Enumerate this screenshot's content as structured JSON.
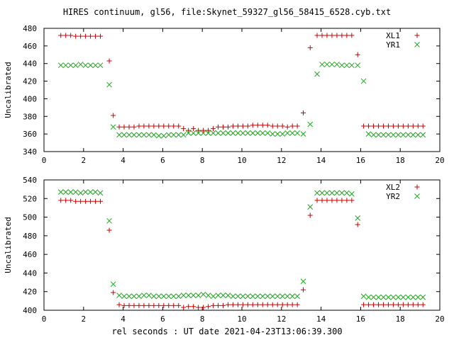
{
  "title": "HIRES continuum, gl56, file:Skynet_59327_gl56_58415_6528.cyb.txt",
  "xlabel": "rel seconds : UT date 2021-04-23T13:06:39.300",
  "colors": {
    "red": "#cc0000",
    "green": "#1fa41f"
  },
  "chart_data": [
    {
      "type": "scatter",
      "ylabel": "Uncalibrated",
      "xlim": [
        0,
        20
      ],
      "ylim": [
        340,
        480
      ],
      "xticks": [
        0,
        2,
        4,
        6,
        8,
        10,
        12,
        14,
        16,
        18,
        20
      ],
      "yticks": [
        340,
        360,
        380,
        400,
        420,
        440,
        460,
        480
      ],
      "legend_position": "top-right",
      "grid": false,
      "series": [
        {
          "name": "XL1",
          "marker": "plus",
          "color": "#cc0000",
          "x": [
            0.85,
            1.1,
            1.35,
            1.6,
            1.85,
            2.1,
            2.35,
            2.6,
            2.85,
            3.3,
            3.5,
            3.8,
            4.05,
            4.3,
            4.55,
            4.8,
            5.05,
            5.3,
            5.55,
            5.8,
            6.05,
            6.3,
            6.55,
            6.8,
            7.05,
            7.3,
            7.55,
            7.8,
            8.05,
            8.3,
            8.55,
            8.8,
            9.05,
            9.3,
            9.55,
            9.8,
            10.05,
            10.3,
            10.55,
            10.8,
            11.05,
            11.3,
            11.55,
            11.8,
            12.05,
            12.3,
            12.55,
            12.8,
            13.1,
            13.45,
            13.8,
            14.05,
            14.3,
            14.55,
            14.8,
            15.05,
            15.3,
            15.55,
            15.85,
            16.15,
            16.4,
            16.65,
            16.9,
            17.15,
            17.4,
            17.65,
            17.9,
            18.15,
            18.4,
            18.65,
            18.9,
            19.15
          ],
          "y": [
            472,
            472,
            472,
            471,
            471,
            471,
            471,
            471,
            471,
            443,
            381,
            368,
            368,
            368,
            368,
            369,
            369,
            369,
            369,
            369,
            369,
            369,
            369,
            369,
            366,
            364,
            366,
            364,
            364,
            364,
            366,
            368,
            368,
            368,
            369,
            369,
            369,
            369,
            370,
            370,
            370,
            370,
            369,
            369,
            369,
            368,
            369,
            369,
            384,
            458,
            472,
            472,
            472,
            472,
            472,
            472,
            472,
            472,
            450,
            369,
            369,
            369,
            369,
            369,
            369,
            369,
            369,
            369,
            369,
            369,
            369,
            369
          ]
        },
        {
          "name": "YR1",
          "marker": "cross",
          "color": "#1fa41f",
          "x": [
            0.85,
            1.1,
            1.35,
            1.6,
            1.85,
            2.1,
            2.35,
            2.6,
            2.85,
            3.3,
            3.5,
            3.8,
            4.05,
            4.3,
            4.55,
            4.8,
            5.05,
            5.3,
            5.55,
            5.8,
            6.05,
            6.3,
            6.55,
            6.8,
            7.05,
            7.3,
            7.55,
            7.8,
            8.05,
            8.3,
            8.55,
            8.8,
            9.05,
            9.3,
            9.55,
            9.8,
            10.05,
            10.3,
            10.55,
            10.8,
            11.05,
            11.3,
            11.55,
            11.8,
            12.05,
            12.3,
            12.55,
            12.8,
            13.1,
            13.45,
            13.8,
            14.05,
            14.3,
            14.55,
            14.8,
            15.05,
            15.3,
            15.55,
            15.85,
            16.15,
            16.4,
            16.65,
            16.9,
            17.15,
            17.4,
            17.65,
            17.9,
            18.15,
            18.4,
            18.65,
            18.9,
            19.15
          ],
          "y": [
            438,
            438,
            438,
            438,
            439,
            438,
            438,
            438,
            438,
            416,
            368,
            359,
            359,
            359,
            359,
            359,
            359,
            359,
            359,
            358,
            358,
            359,
            359,
            359,
            359,
            361,
            361,
            361,
            361,
            361,
            361,
            361,
            361,
            361,
            361,
            361,
            361,
            361,
            361,
            361,
            361,
            361,
            360,
            360,
            360,
            361,
            361,
            361,
            360,
            371,
            428,
            439,
            439,
            439,
            439,
            438,
            438,
            438,
            438,
            420,
            360,
            359,
            359,
            359,
            359,
            359,
            359,
            359,
            359,
            359,
            359,
            359
          ]
        }
      ]
    },
    {
      "type": "scatter",
      "ylabel": "Uncalibrated",
      "xlabel": "rel seconds : UT date 2021-04-23T13:06:39.300",
      "xlim": [
        0,
        20
      ],
      "ylim": [
        400,
        540
      ],
      "xticks": [
        0,
        2,
        4,
        6,
        8,
        10,
        12,
        14,
        16,
        18,
        20
      ],
      "yticks": [
        400,
        420,
        440,
        460,
        480,
        500,
        520,
        540
      ],
      "legend_position": "top-right",
      "grid": false,
      "series": [
        {
          "name": "XL2",
          "marker": "plus",
          "color": "#cc0000",
          "x": [
            0.85,
            1.1,
            1.35,
            1.6,
            1.85,
            2.1,
            2.35,
            2.6,
            2.85,
            3.3,
            3.5,
            3.8,
            4.05,
            4.3,
            4.55,
            4.8,
            5.05,
            5.3,
            5.55,
            5.8,
            6.05,
            6.3,
            6.55,
            6.8,
            7.05,
            7.3,
            7.55,
            7.8,
            8.05,
            8.3,
            8.55,
            8.8,
            9.05,
            9.3,
            9.55,
            9.8,
            10.05,
            10.3,
            10.55,
            10.8,
            11.05,
            11.3,
            11.55,
            11.8,
            12.05,
            12.3,
            12.55,
            12.8,
            13.1,
            13.45,
            13.8,
            14.05,
            14.3,
            14.55,
            14.8,
            15.05,
            15.3,
            15.55,
            15.85,
            16.15,
            16.4,
            16.65,
            16.9,
            17.15,
            17.4,
            17.65,
            17.9,
            18.15,
            18.4,
            18.65,
            18.9,
            19.15
          ],
          "y": [
            518,
            518,
            518,
            517,
            517,
            517,
            517,
            517,
            517,
            486,
            419,
            406,
            405,
            405,
            405,
            405,
            405,
            405,
            405,
            405,
            405,
            405,
            405,
            405,
            403,
            404,
            404,
            403,
            403,
            404,
            405,
            405,
            405,
            406,
            406,
            406,
            406,
            406,
            406,
            406,
            406,
            406,
            406,
            406,
            406,
            406,
            406,
            406,
            422,
            502,
            518,
            518,
            518,
            518,
            518,
            518,
            518,
            518,
            492,
            406,
            406,
            406,
            406,
            406,
            406,
            406,
            406,
            406,
            406,
            406,
            406,
            406
          ]
        },
        {
          "name": "YR2",
          "marker": "cross",
          "color": "#1fa41f",
          "x": [
            0.85,
            1.1,
            1.35,
            1.6,
            1.85,
            2.1,
            2.35,
            2.6,
            2.85,
            3.3,
            3.5,
            3.8,
            4.05,
            4.3,
            4.55,
            4.8,
            5.05,
            5.3,
            5.55,
            5.8,
            6.05,
            6.3,
            6.55,
            6.8,
            7.05,
            7.3,
            7.55,
            7.8,
            8.05,
            8.3,
            8.55,
            8.8,
            9.05,
            9.3,
            9.55,
            9.8,
            10.05,
            10.3,
            10.55,
            10.8,
            11.05,
            11.3,
            11.55,
            11.8,
            12.05,
            12.3,
            12.55,
            12.8,
            13.1,
            13.45,
            13.8,
            14.05,
            14.3,
            14.55,
            14.8,
            15.05,
            15.3,
            15.55,
            15.85,
            16.15,
            16.4,
            16.65,
            16.9,
            17.15,
            17.4,
            17.65,
            17.9,
            18.15,
            18.4,
            18.65,
            18.9,
            19.15
          ],
          "y": [
            527,
            527,
            527,
            527,
            526,
            527,
            527,
            527,
            526,
            496,
            428,
            416,
            415,
            415,
            415,
            415,
            416,
            416,
            415,
            415,
            415,
            415,
            415,
            415,
            416,
            416,
            416,
            416,
            417,
            416,
            415,
            416,
            416,
            416,
            415,
            415,
            415,
            415,
            415,
            415,
            415,
            415,
            415,
            415,
            415,
            415,
            415,
            415,
            431,
            511,
            526,
            526,
            526,
            526,
            526,
            526,
            526,
            525,
            499,
            415,
            414,
            414,
            414,
            414,
            414,
            414,
            414,
            414,
            414,
            414,
            414,
            414
          ]
        }
      ]
    }
  ]
}
